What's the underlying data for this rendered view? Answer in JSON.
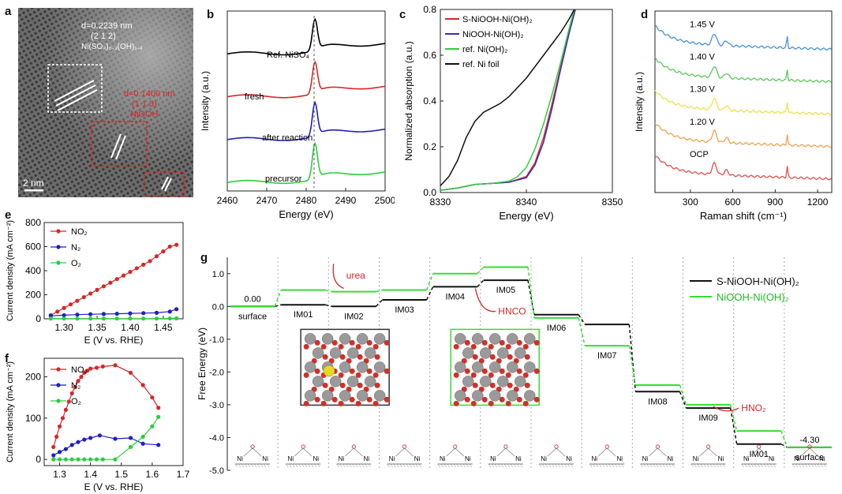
{
  "panel_labels": {
    "a": "a",
    "b": "b",
    "c": "c",
    "d": "d",
    "e": "e",
    "f": "f",
    "g": "g"
  },
  "tem": {
    "line1": "d=0.2239 nm",
    "line2": "(2 1 2)",
    "line3": "Ni(SO₄)₀.₃(OH)₁.₄",
    "red1": "d=0.1400 nm",
    "red2": "(1 1 0)",
    "red3": "NiOOH",
    "scale": "2 nm"
  },
  "chart_data": [
    {
      "id": "b",
      "type": "line",
      "xlabel": "Energy (eV)",
      "ylabel": "Intensity (a.u.)",
      "xlim": [
        2460,
        2500
      ],
      "xticks": [
        2460,
        2470,
        2480,
        2490,
        2500
      ],
      "series": [
        {
          "name": "Ref. NiSO₄",
          "color": "#000000",
          "offset": 3.0,
          "peak": 0.75
        },
        {
          "name": "fresh",
          "color": "#d62728",
          "offset": 2.0,
          "peak": 0.75
        },
        {
          "name": "after reaction",
          "color": "#1f1fbf",
          "offset": 1.0,
          "peak": 0.8
        },
        {
          "name": "precursor",
          "color": "#2ecc40",
          "offset": 0.0,
          "peak": 0.85
        }
      ],
      "peak_line_x": 2482
    },
    {
      "id": "c",
      "type": "line",
      "xlabel": "Energy (eV)",
      "ylabel": "Normalized absorption (a.u.)",
      "xlim": [
        8330,
        8350
      ],
      "ylim": [
        0,
        0.8
      ],
      "xticks": [
        8330,
        8340,
        8350
      ],
      "yticks": [
        0.0,
        0.2,
        0.4,
        0.6,
        0.8
      ],
      "series": [
        {
          "name": "S-NiOOH-Ni(OH)₂",
          "color": "#d62728",
          "x": [
            8330,
            8332,
            8334,
            8336,
            8338,
            8340,
            8341,
            8342,
            8343,
            8344,
            8345,
            8346
          ],
          "y": [
            0.01,
            0.02,
            0.035,
            0.04,
            0.045,
            0.07,
            0.13,
            0.24,
            0.39,
            0.55,
            0.7,
            0.84
          ]
        },
        {
          "name": "NiOOH-Ni(OH)₂",
          "color": "#3c2cb8",
          "x": [
            8330,
            8332,
            8334,
            8336,
            8338,
            8340,
            8341,
            8342,
            8343,
            8344,
            8345,
            8346
          ],
          "y": [
            0.01,
            0.02,
            0.035,
            0.04,
            0.045,
            0.065,
            0.12,
            0.22,
            0.37,
            0.54,
            0.7,
            0.85
          ]
        },
        {
          "name": "ref. Ni(OH)₂",
          "color": "#2ecc40",
          "x": [
            8330,
            8332,
            8334,
            8336,
            8338,
            8339,
            8340,
            8341,
            8342,
            8343,
            8344,
            8345,
            8346
          ],
          "y": [
            0.01,
            0.02,
            0.035,
            0.04,
            0.05,
            0.07,
            0.11,
            0.19,
            0.3,
            0.43,
            0.57,
            0.72,
            0.86
          ]
        },
        {
          "name": "ref. Ni foil",
          "color": "#111111",
          "x": [
            8330,
            8331,
            8332,
            8333,
            8334,
            8335,
            8336,
            8337,
            8338,
            8339,
            8340,
            8341,
            8342,
            8343,
            8344,
            8345,
            8346
          ],
          "y": [
            0.03,
            0.07,
            0.14,
            0.24,
            0.31,
            0.35,
            0.37,
            0.39,
            0.42,
            0.46,
            0.5,
            0.55,
            0.6,
            0.65,
            0.7,
            0.76,
            0.83
          ]
        }
      ]
    },
    {
      "id": "d",
      "type": "line",
      "xlabel": "Raman shift (cm⁻¹)",
      "ylabel": "Intensity (a.u.)",
      "xlim": [
        50,
        1300
      ],
      "xticks": [
        300,
        600,
        900,
        1200
      ],
      "series": [
        {
          "name": "1.45 V",
          "color": "#4a90d9",
          "offset": 4
        },
        {
          "name": "1.40 V",
          "color": "#5ac85a",
          "offset": 3
        },
        {
          "name": "1.30 V",
          "color": "#f0e04a",
          "offset": 2
        },
        {
          "name": "1.20 V",
          "color": "#f0a050",
          "offset": 1
        },
        {
          "name": "OCP",
          "color": "#e05050",
          "offset": 0
        }
      ],
      "peaks": [
        470,
        555,
        985
      ]
    },
    {
      "id": "e",
      "type": "line",
      "xlabel": "E (V vs. RHE)",
      "ylabel": "Current density (mA cm⁻²)",
      "xlim": [
        1.27,
        1.48
      ],
      "ylim": [
        0,
        800
      ],
      "xticks": [
        1.3,
        1.35,
        1.4,
        1.45
      ],
      "yticks": [
        0,
        200,
        400,
        600,
        800
      ],
      "series": [
        {
          "name": "NO₂",
          "color": "#d62728",
          "x": [
            1.28,
            1.29,
            1.3,
            1.31,
            1.32,
            1.33,
            1.34,
            1.35,
            1.36,
            1.37,
            1.38,
            1.39,
            1.4,
            1.41,
            1.42,
            1.43,
            1.44,
            1.45,
            1.46,
            1.47
          ],
          "y": [
            30,
            60,
            90,
            120,
            150,
            180,
            210,
            240,
            270,
            300,
            330,
            360,
            390,
            420,
            450,
            480,
            520,
            560,
            600,
            615
          ]
        },
        {
          "name": "N₂",
          "color": "#1f1fbf",
          "x": [
            1.28,
            1.3,
            1.32,
            1.34,
            1.36,
            1.38,
            1.4,
            1.42,
            1.44,
            1.46,
            1.47
          ],
          "y": [
            25,
            30,
            35,
            38,
            40,
            42,
            45,
            47,
            50,
            60,
            80
          ]
        },
        {
          "name": "O₂",
          "color": "#2ecc40",
          "x": [
            1.28,
            1.3,
            1.32,
            1.34,
            1.36,
            1.38,
            1.4,
            1.42,
            1.44,
            1.46,
            1.47
          ],
          "y": [
            2,
            2,
            2,
            2,
            2,
            2,
            2,
            2,
            2,
            3,
            4
          ]
        }
      ]
    },
    {
      "id": "f",
      "type": "line",
      "xlabel": "E (V vs. RHE)",
      "ylabel": "Current density (mA cm⁻²)",
      "xlim": [
        1.25,
        1.7
      ],
      "ylim": [
        -15,
        245
      ],
      "xticks": [
        1.3,
        1.4,
        1.5,
        1.6,
        1.7
      ],
      "yticks": [
        0,
        100,
        200
      ],
      "series": [
        {
          "name": "NO₂",
          "color": "#d62728",
          "x": [
            1.28,
            1.29,
            1.3,
            1.31,
            1.32,
            1.33,
            1.34,
            1.35,
            1.36,
            1.37,
            1.38,
            1.39,
            1.4,
            1.42,
            1.44,
            1.48,
            1.53,
            1.57,
            1.6,
            1.62
          ],
          "y": [
            30,
            55,
            80,
            100,
            120,
            140,
            160,
            175,
            190,
            200,
            210,
            215,
            220,
            222,
            225,
            228,
            210,
            180,
            150,
            125
          ]
        },
        {
          "name": "N₂",
          "color": "#1f1fbf",
          "x": [
            1.28,
            1.3,
            1.32,
            1.34,
            1.36,
            1.38,
            1.4,
            1.43,
            1.48,
            1.53,
            1.57,
            1.62
          ],
          "y": [
            10,
            18,
            25,
            35,
            42,
            48,
            52,
            58,
            50,
            52,
            38,
            35
          ]
        },
        {
          "name": "O₂",
          "color": "#2ecc40",
          "x": [
            1.28,
            1.3,
            1.32,
            1.34,
            1.36,
            1.38,
            1.4,
            1.42,
            1.44,
            1.48,
            1.53,
            1.57,
            1.6,
            1.62
          ],
          "y": [
            0,
            0,
            0,
            0,
            0,
            0,
            0,
            0,
            0,
            0,
            30,
            55,
            80,
            103
          ]
        }
      ]
    },
    {
      "id": "g",
      "type": "line",
      "ylabel": "Free Energy (eV)",
      "ylim": [
        -5.0,
        1.5
      ],
      "yticks": [
        1.0,
        0.0,
        -1.0,
        -2.0,
        -3.0,
        -4.0,
        -5.0
      ],
      "ytick_labels": [
        "1.0",
        "0.0",
        "-1.0",
        "-2.0",
        "-3.0",
        "-4.0",
        "-5.0"
      ],
      "categories": [
        "surface",
        "IM01",
        "IM02",
        "IM03",
        "IM04",
        "IM05",
        "IM06",
        "IM07",
        "IM08",
        "IM09",
        "IM01",
        "surface"
      ],
      "series": [
        {
          "name": "S-NiOOH-Ni(OH)₂",
          "color": "#111111",
          "values": [
            0.0,
            0.05,
            0.0,
            0.2,
            0.6,
            0.8,
            -0.25,
            -0.55,
            -2.6,
            -3.1,
            -4.2,
            -4.3
          ]
        },
        {
          "name": "NiOOH-Ni(OH)₂",
          "color": "#33dd33",
          "values": [
            0.0,
            0.5,
            0.45,
            0.5,
            1.0,
            1.2,
            -0.35,
            -1.2,
            -2.4,
            -3.0,
            -3.8,
            -4.3
          ]
        }
      ],
      "value_labels": {
        "start": "0.00",
        "end": "-4.30"
      },
      "annotations": {
        "urea": "urea",
        "hnco": "HNCO",
        "hno2": "HNO₂"
      }
    }
  ]
}
